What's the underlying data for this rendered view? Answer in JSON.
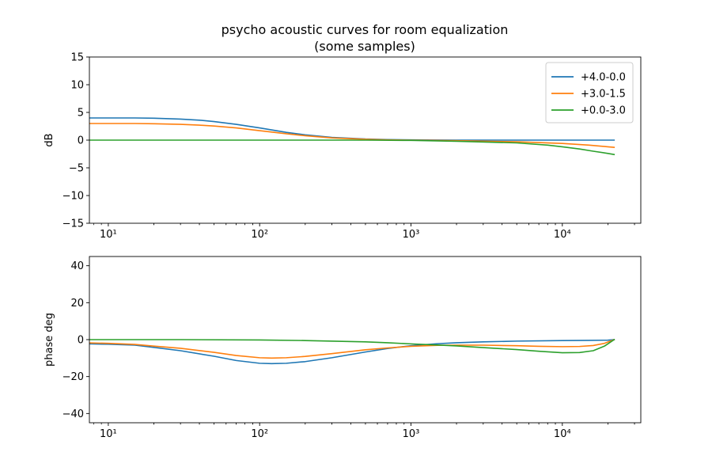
{
  "figure": {
    "title": "psycho acoustic curves for room equalization",
    "subtitle": "(some samples)"
  },
  "chart_data": [
    {
      "type": "line",
      "id": "magnitude",
      "xlabel": "",
      "ylabel": "dB",
      "xscale": "log",
      "xlim": [
        7.5,
        33000
      ],
      "ylim": [
        -15,
        15
      ],
      "yticks": [
        -15,
        -10,
        -5,
        0,
        5,
        10,
        15
      ],
      "xticks": [
        {
          "value": 10,
          "label": "10¹"
        },
        {
          "value": 100,
          "label": "10²"
        },
        {
          "value": 1000,
          "label": "10³"
        },
        {
          "value": 10000,
          "label": "10⁴"
        }
      ],
      "grid": false,
      "legend": "top-right",
      "series": [
        {
          "name": "+4.0-0.0",
          "color": "#1f77b4",
          "x": [
            7.5,
            10,
            15,
            20,
            30,
            40,
            50,
            70,
            100,
            150,
            200,
            300,
            500,
            700,
            1000,
            2000,
            5000,
            10000,
            20000,
            22000
          ],
          "y": [
            4.0,
            4.0,
            4.0,
            3.95,
            3.8,
            3.6,
            3.35,
            2.85,
            2.2,
            1.4,
            0.95,
            0.5,
            0.2,
            0.1,
            0.05,
            0.0,
            0.0,
            0.0,
            0.0,
            0.0
          ]
        },
        {
          "name": "+3.0-1.5",
          "color": "#ff7f0e",
          "x": [
            7.5,
            10,
            15,
            20,
            30,
            40,
            50,
            70,
            100,
            150,
            200,
            300,
            500,
            700,
            1000,
            2000,
            5000,
            10000,
            15000,
            20000,
            22000
          ],
          "y": [
            3.0,
            3.0,
            3.0,
            2.95,
            2.85,
            2.7,
            2.55,
            2.2,
            1.7,
            1.15,
            0.8,
            0.4,
            0.15,
            0.05,
            0.0,
            -0.1,
            -0.3,
            -0.6,
            -0.9,
            -1.2,
            -1.3
          ]
        },
        {
          "name": "+0.0-3.0",
          "color": "#2ca02c",
          "x": [
            7.5,
            10,
            100,
            500,
            1000,
            2000,
            5000,
            8000,
            10000,
            13000,
            16000,
            20000,
            22000
          ],
          "y": [
            0.0,
            0.0,
            0.0,
            0.0,
            -0.05,
            -0.2,
            -0.5,
            -0.9,
            -1.2,
            -1.6,
            -2.0,
            -2.4,
            -2.6
          ]
        }
      ]
    },
    {
      "type": "line",
      "id": "phase",
      "xlabel": "",
      "ylabel": "phase deg",
      "xscale": "log",
      "xlim": [
        7.5,
        33000
      ],
      "ylim": [
        -45,
        45
      ],
      "yticks": [
        -40,
        -20,
        0,
        20,
        40
      ],
      "xticks": [
        {
          "value": 10,
          "label": "10¹"
        },
        {
          "value": 100,
          "label": "10²"
        },
        {
          "value": 1000,
          "label": "10³"
        },
        {
          "value": 10000,
          "label": "10⁴"
        }
      ],
      "grid": false,
      "series": [
        {
          "name": "+4.0-0.0",
          "color": "#1f77b4",
          "x": [
            7.5,
            10,
            15,
            20,
            30,
            50,
            70,
            100,
            120,
            150,
            200,
            300,
            500,
            700,
            1000,
            1500,
            2000,
            3000,
            5000,
            10000,
            15000,
            20000,
            22000
          ],
          "y": [
            -2.3,
            -2.5,
            -3.0,
            -4.2,
            -6.0,
            -9.0,
            -11.3,
            -12.8,
            -13.0,
            -12.8,
            -11.9,
            -9.8,
            -6.7,
            -4.8,
            -3.3,
            -2.2,
            -1.7,
            -1.2,
            -0.8,
            -0.5,
            -0.4,
            -0.3,
            0.0
          ]
        },
        {
          "name": "+3.0-1.5",
          "color": "#ff7f0e",
          "x": [
            7.5,
            10,
            15,
            20,
            30,
            50,
            70,
            100,
            120,
            150,
            200,
            300,
            500,
            700,
            1000,
            1500,
            2000,
            3000,
            5000,
            7000,
            10000,
            13000,
            16000,
            19000,
            22000
          ],
          "y": [
            -1.8,
            -2.0,
            -2.6,
            -3.5,
            -4.7,
            -6.9,
            -8.6,
            -9.8,
            -10.0,
            -9.8,
            -9.1,
            -7.6,
            -5.5,
            -4.5,
            -3.6,
            -3.1,
            -3.0,
            -3.0,
            -3.3,
            -3.6,
            -3.8,
            -3.7,
            -3.2,
            -2.0,
            0.0
          ]
        },
        {
          "name": "+0.0-3.0",
          "color": "#2ca02c",
          "x": [
            7.5,
            10,
            30,
            100,
            200,
            500,
            700,
            1000,
            1500,
            2000,
            3000,
            5000,
            7000,
            10000,
            13000,
            16000,
            19000,
            22000
          ],
          "y": [
            0.0,
            0.0,
            0.0,
            -0.2,
            -0.5,
            -1.2,
            -1.7,
            -2.3,
            -2.9,
            -3.4,
            -4.3,
            -5.4,
            -6.3,
            -7.1,
            -7.0,
            -6.0,
            -3.5,
            0.0
          ]
        }
      ]
    }
  ]
}
